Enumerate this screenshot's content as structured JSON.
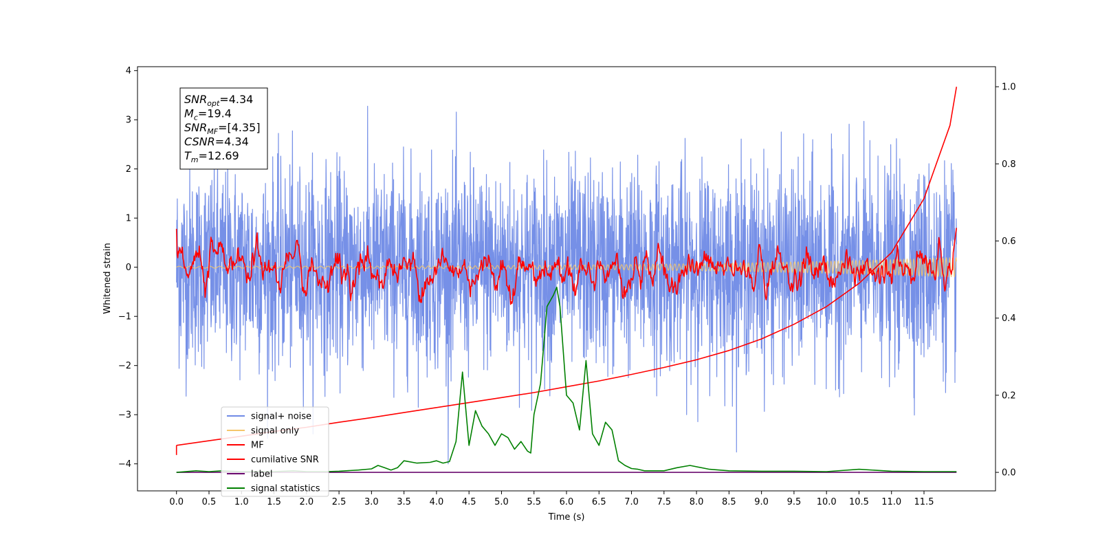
{
  "chart_data": {
    "type": "line",
    "xlabel": "Time (s)",
    "ylabel": "Whitened strain",
    "xlim": [
      -0.6,
      12.6
    ],
    "ylim": [
      -4.55,
      4.08
    ],
    "y2lim": [
      -0.048,
      1.052
    ],
    "x_ticks": [
      "0.0",
      "0.5",
      "1.0",
      "1.5",
      "2.0",
      "2.5",
      "3.0",
      "3.5",
      "4.0",
      "4.5",
      "5.0",
      "5.5",
      "6.0",
      "6.5",
      "7.0",
      "7.5",
      "8.0",
      "8.5",
      "9.0",
      "9.5",
      "10.0",
      "10.5",
      "11.0",
      "11.5"
    ],
    "y_ticks": [
      "4",
      "3",
      "2",
      "1",
      "0",
      "−1",
      "−2",
      "−3",
      "−4"
    ],
    "y2_ticks": [
      "1.0",
      "0.8",
      "0.6",
      "0.4",
      "0.2",
      "0.0"
    ],
    "info_box": [
      {
        "base": "SNR",
        "sub": "opt",
        "value": "=4.34"
      },
      {
        "base": "M",
        "sub": "c",
        "value": "=19.4"
      },
      {
        "base": "SNR",
        "sub": "MF",
        "value": "=[4.35]"
      },
      {
        "base": "CSNR",
        "sub": "",
        "value": "=4.34"
      },
      {
        "base": "T",
        "sub": "m",
        "value": "=12.69"
      }
    ],
    "legend": {
      "location": "lower-left",
      "entries": [
        {
          "label": "signal+ noise",
          "color": "#6f8ae6"
        },
        {
          "label": "signal only",
          "color": "#f5c66a"
        },
        {
          "label": "MF",
          "color": "#ff0000"
        },
        {
          "label": "cumilative SNR",
          "color": "#ff0000"
        },
        {
          "label": "label",
          "color": "#6a0a6e"
        },
        {
          "label": "signal statistics",
          "color": "#008000"
        }
      ]
    },
    "series": [
      {
        "name": "signal+ noise",
        "axis": "left",
        "style": "noise",
        "x_range": [
          0.0,
          12.0
        ],
        "std": 1.0
      },
      {
        "name": "signal only",
        "axis": "left",
        "style": "chirp",
        "x_range": [
          0.0,
          12.0
        ],
        "amp_start": 0.02,
        "amp_end": 0.2
      },
      {
        "name": "MF",
        "axis": "left",
        "style": "smooth_noise",
        "x_range": [
          0.0,
          12.0
        ],
        "mean": -0.05,
        "amp": 0.3
      },
      {
        "name": "cumilative SNR",
        "axis": "right",
        "x": [
          0.0,
          0.5,
          1.0,
          1.5,
          2.0,
          2.5,
          3.0,
          3.5,
          4.0,
          4.5,
          5.0,
          5.5,
          6.0,
          6.5,
          7.0,
          7.5,
          8.0,
          8.5,
          9.0,
          9.5,
          10.0,
          10.5,
          11.0,
          11.5,
          11.9,
          12.0
        ],
        "values": [
          0.07,
          0.082,
          0.094,
          0.106,
          0.117,
          0.13,
          0.142,
          0.155,
          0.168,
          0.181,
          0.194,
          0.207,
          0.222,
          0.237,
          0.254,
          0.272,
          0.292,
          0.316,
          0.346,
          0.384,
          0.43,
          0.49,
          0.57,
          0.71,
          0.9,
          1.0
        ]
      },
      {
        "name": "label",
        "axis": "right",
        "x": [
          0.0,
          12.0
        ],
        "values": [
          0.0,
          0.0
        ]
      },
      {
        "name": "signal statistics",
        "axis": "right",
        "x": [
          0.0,
          0.3,
          0.5,
          0.7,
          1.0,
          1.5,
          1.8,
          2.0,
          2.3,
          2.5,
          2.8,
          3.0,
          3.1,
          3.2,
          3.3,
          3.4,
          3.5,
          3.7,
          3.9,
          4.0,
          4.1,
          4.2,
          4.3,
          4.4,
          4.5,
          4.6,
          4.7,
          4.8,
          4.9,
          5.0,
          5.1,
          5.2,
          5.3,
          5.4,
          5.45,
          5.5,
          5.6,
          5.7,
          5.8,
          5.85,
          5.9,
          6.0,
          6.1,
          6.2,
          6.3,
          6.4,
          6.5,
          6.6,
          6.7,
          6.8,
          6.9,
          7.0,
          7.1,
          7.2,
          7.5,
          7.7,
          7.9,
          8.2,
          8.5,
          9.0,
          9.5,
          10.0,
          10.5,
          11.0,
          11.5,
          12.0
        ],
        "values": [
          0.0,
          0.004,
          0.002,
          0.004,
          0.002,
          0.002,
          0.004,
          0.002,
          0.002,
          0.003,
          0.006,
          0.009,
          0.018,
          0.012,
          0.006,
          0.012,
          0.03,
          0.024,
          0.026,
          0.03,
          0.024,
          0.028,
          0.08,
          0.26,
          0.07,
          0.16,
          0.12,
          0.1,
          0.07,
          0.1,
          0.09,
          0.06,
          0.08,
          0.055,
          0.05,
          0.15,
          0.23,
          0.43,
          0.46,
          0.48,
          0.43,
          0.2,
          0.18,
          0.11,
          0.29,
          0.1,
          0.07,
          0.13,
          0.11,
          0.03,
          0.018,
          0.01,
          0.008,
          0.004,
          0.004,
          0.012,
          0.018,
          0.008,
          0.004,
          0.003,
          0.003,
          0.002,
          0.008,
          0.003,
          0.002,
          0.002
        ]
      }
    ]
  }
}
